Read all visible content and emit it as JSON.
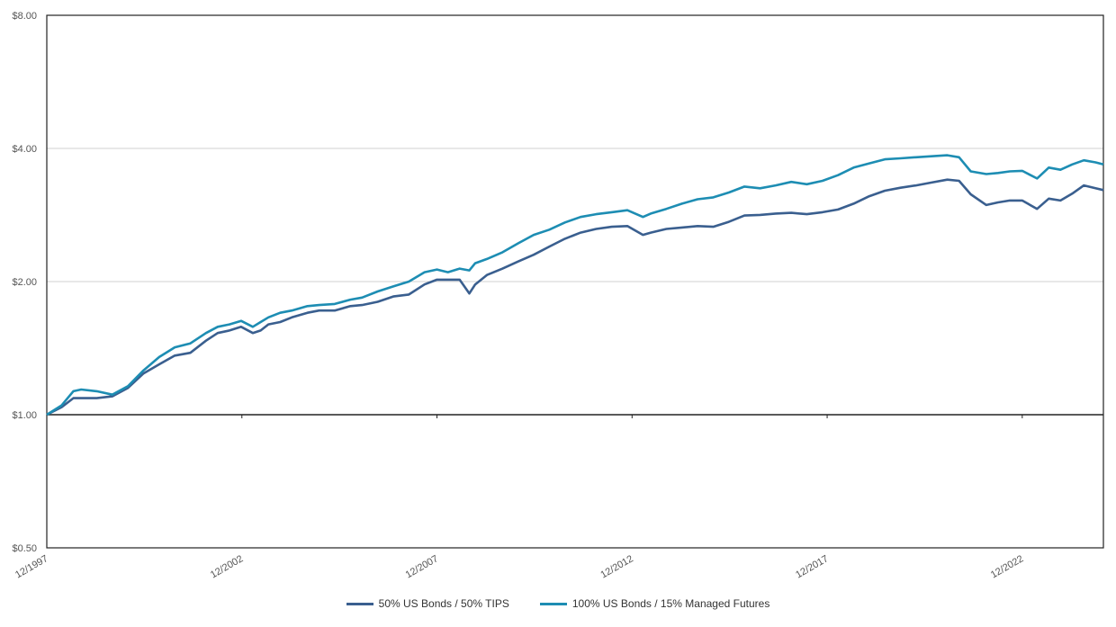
{
  "chart_data": {
    "type": "line",
    "title": "",
    "xlabel": "",
    "ylabel": "",
    "y_scale": "log",
    "ylim": [
      0.5,
      8.0
    ],
    "y_ticks": [
      {
        "value": 8.0,
        "label": "$8.00"
      },
      {
        "value": 4.0,
        "label": "$4.00"
      },
      {
        "value": 2.0,
        "label": "$2.00"
      },
      {
        "value": 1.0,
        "label": "$1.00"
      },
      {
        "value": 0.5,
        "label": "$0.50"
      }
    ],
    "xlim": [
      1997.92,
      2025.0
    ],
    "x_ticks": [
      {
        "value": 1997.92,
        "label": "12/1997"
      },
      {
        "value": 2002.92,
        "label": "12/2002"
      },
      {
        "value": 2007.92,
        "label": "12/2007"
      },
      {
        "value": 2012.92,
        "label": "12/2012"
      },
      {
        "value": 2017.92,
        "label": "12/2017"
      },
      {
        "value": 2022.92,
        "label": "12/2022"
      }
    ],
    "grid": "horizontal",
    "legend_position": "bottom",
    "series": [
      {
        "name": "50% US Bonds / 50% TIPS",
        "color": "#3a5f8f",
        "x": [
          1997.92,
          1998.3,
          1998.6,
          1998.8,
          1999.2,
          1999.6,
          2000.0,
          2000.4,
          2000.8,
          2001.2,
          2001.6,
          2002.0,
          2002.3,
          2002.6,
          2002.9,
          2003.2,
          2003.4,
          2003.6,
          2003.9,
          2004.2,
          2004.6,
          2004.9,
          2005.3,
          2005.7,
          2006.0,
          2006.4,
          2006.8,
          2007.2,
          2007.6,
          2007.92,
          2008.2,
          2008.5,
          2008.75,
          2008.9,
          2009.2,
          2009.6,
          2010.0,
          2010.4,
          2010.8,
          2011.2,
          2011.6,
          2012.0,
          2012.4,
          2012.8,
          2013.2,
          2013.4,
          2013.8,
          2014.2,
          2014.6,
          2015.0,
          2015.4,
          2015.8,
          2016.2,
          2016.6,
          2017.0,
          2017.4,
          2017.8,
          2018.2,
          2018.6,
          2019.0,
          2019.4,
          2019.8,
          2020.2,
          2020.6,
          2021.0,
          2021.3,
          2021.6,
          2022.0,
          2022.3,
          2022.6,
          2022.92,
          2023.3,
          2023.6,
          2023.9,
          2024.2,
          2024.5,
          2024.8,
          2025.0
        ],
        "values": [
          1.0,
          1.04,
          1.09,
          1.09,
          1.09,
          1.1,
          1.15,
          1.24,
          1.3,
          1.36,
          1.38,
          1.47,
          1.53,
          1.55,
          1.58,
          1.53,
          1.55,
          1.6,
          1.62,
          1.66,
          1.7,
          1.72,
          1.72,
          1.76,
          1.77,
          1.8,
          1.85,
          1.87,
          1.97,
          2.02,
          2.02,
          2.02,
          1.88,
          1.97,
          2.07,
          2.14,
          2.22,
          2.3,
          2.4,
          2.5,
          2.58,
          2.63,
          2.66,
          2.67,
          2.55,
          2.58,
          2.63,
          2.65,
          2.67,
          2.66,
          2.73,
          2.82,
          2.83,
          2.85,
          2.86,
          2.84,
          2.87,
          2.91,
          3.0,
          3.12,
          3.21,
          3.26,
          3.3,
          3.35,
          3.4,
          3.38,
          3.15,
          2.98,
          3.02,
          3.05,
          3.05,
          2.92,
          3.08,
          3.05,
          3.16,
          3.3,
          3.25,
          3.22
        ]
      },
      {
        "name": "100% US Bonds / 15% Managed Futures",
        "color": "#1d8db3",
        "x": [
          1997.92,
          1998.3,
          1998.6,
          1998.8,
          1999.2,
          1999.6,
          2000.0,
          2000.4,
          2000.8,
          2001.2,
          2001.6,
          2002.0,
          2002.3,
          2002.6,
          2002.9,
          2003.2,
          2003.4,
          2003.6,
          2003.9,
          2004.2,
          2004.6,
          2004.9,
          2005.3,
          2005.7,
          2006.0,
          2006.4,
          2006.8,
          2007.2,
          2007.6,
          2007.92,
          2008.2,
          2008.5,
          2008.75,
          2008.9,
          2009.2,
          2009.6,
          2010.0,
          2010.4,
          2010.8,
          2011.2,
          2011.6,
          2012.0,
          2012.4,
          2012.8,
          2013.2,
          2013.4,
          2013.8,
          2014.2,
          2014.6,
          2015.0,
          2015.4,
          2015.8,
          2016.2,
          2016.6,
          2017.0,
          2017.4,
          2017.8,
          2018.2,
          2018.6,
          2019.0,
          2019.4,
          2019.8,
          2020.2,
          2020.6,
          2021.0,
          2021.3,
          2021.6,
          2022.0,
          2022.3,
          2022.6,
          2022.92,
          2023.3,
          2023.6,
          2023.9,
          2024.2,
          2024.5,
          2024.8,
          2025.0
        ],
        "values": [
          1.0,
          1.05,
          1.13,
          1.14,
          1.13,
          1.11,
          1.16,
          1.26,
          1.35,
          1.42,
          1.45,
          1.53,
          1.58,
          1.6,
          1.63,
          1.58,
          1.62,
          1.66,
          1.7,
          1.72,
          1.76,
          1.77,
          1.78,
          1.82,
          1.84,
          1.9,
          1.95,
          2.0,
          2.1,
          2.13,
          2.1,
          2.14,
          2.12,
          2.2,
          2.25,
          2.33,
          2.44,
          2.55,
          2.62,
          2.72,
          2.8,
          2.84,
          2.87,
          2.9,
          2.8,
          2.85,
          2.92,
          3.0,
          3.07,
          3.1,
          3.18,
          3.28,
          3.25,
          3.3,
          3.36,
          3.32,
          3.38,
          3.48,
          3.62,
          3.7,
          3.78,
          3.8,
          3.82,
          3.84,
          3.86,
          3.82,
          3.55,
          3.5,
          3.52,
          3.55,
          3.56,
          3.42,
          3.62,
          3.58,
          3.68,
          3.76,
          3.72,
          3.68
        ]
      }
    ]
  }
}
